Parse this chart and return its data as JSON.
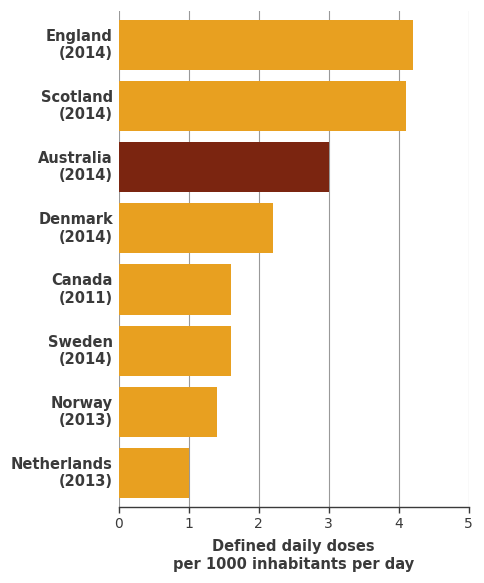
{
  "categories": [
    "Netherlands\n(2013)",
    "Norway\n(2013)",
    "Sweden\n(2014)",
    "Canada\n(2011)",
    "Denmark\n(2014)",
    "Australia\n(2014)",
    "Scotland\n(2014)",
    "England\n(2014)"
  ],
  "values": [
    1.0,
    1.4,
    1.6,
    1.6,
    2.2,
    3.0,
    4.1,
    4.2
  ],
  "bar_colors": [
    "#E8A020",
    "#E8A020",
    "#E8A020",
    "#E8A020",
    "#E8A020",
    "#7B2510",
    "#E8A020",
    "#E8A020"
  ],
  "xlabel": "Defined daily doses\nper 1000 inhabitants per day",
  "xlim": [
    0,
    5
  ],
  "xticks": [
    0,
    1,
    2,
    3,
    4,
    5
  ],
  "background_color": "#ffffff",
  "grid_color": "#999999",
  "label_fontsize": 10.5,
  "xlabel_fontsize": 10.5,
  "tick_fontsize": 10
}
